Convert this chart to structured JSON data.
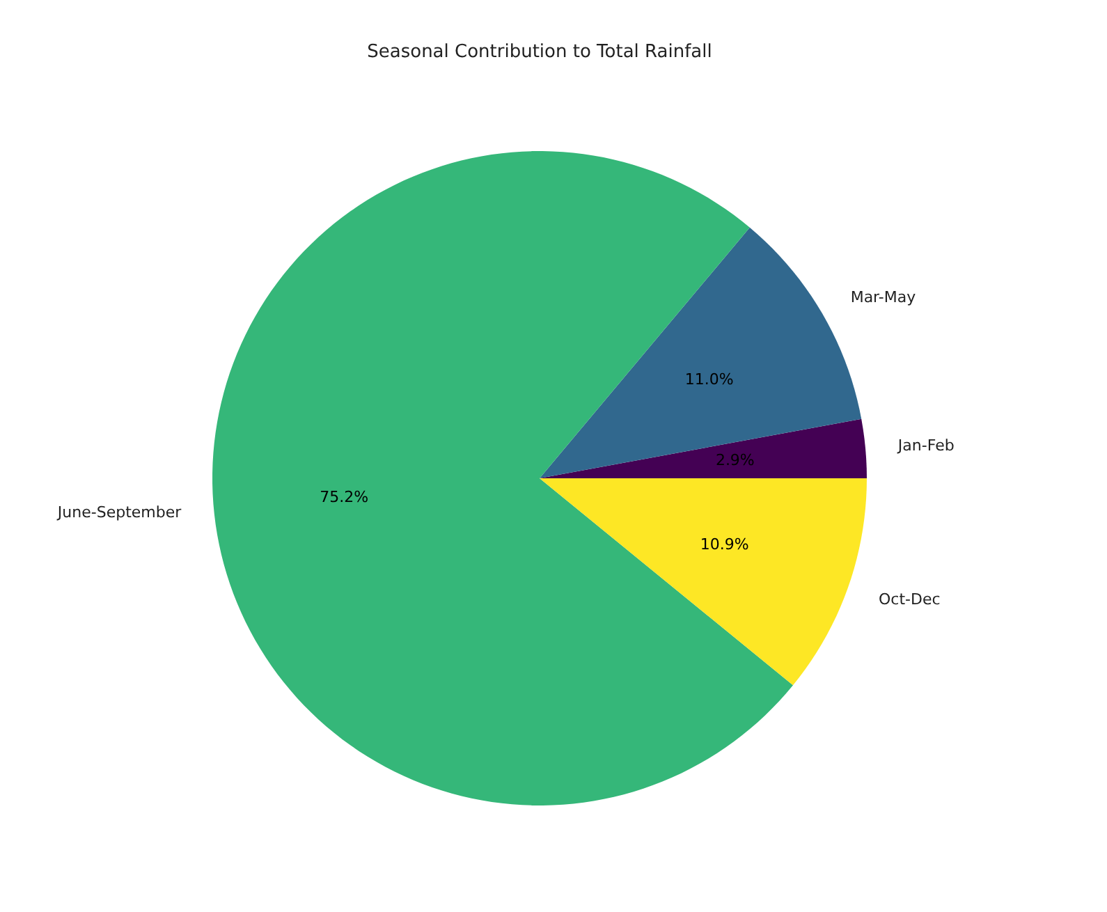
{
  "chart_data": {
    "type": "pie",
    "title": "Seasonal Contribution to Total Rainfall",
    "categories": [
      "Jan-Feb",
      "Mar-May",
      "June-September",
      "Oct-Dec"
    ],
    "values": [
      2.9,
      11.0,
      75.2,
      10.9
    ],
    "colors": [
      "#440154",
      "#31688e",
      "#35b779",
      "#fde725"
    ],
    "value_labels": [
      "2.9%",
      "11.0%",
      "75.2%",
      "10.9%"
    ]
  }
}
